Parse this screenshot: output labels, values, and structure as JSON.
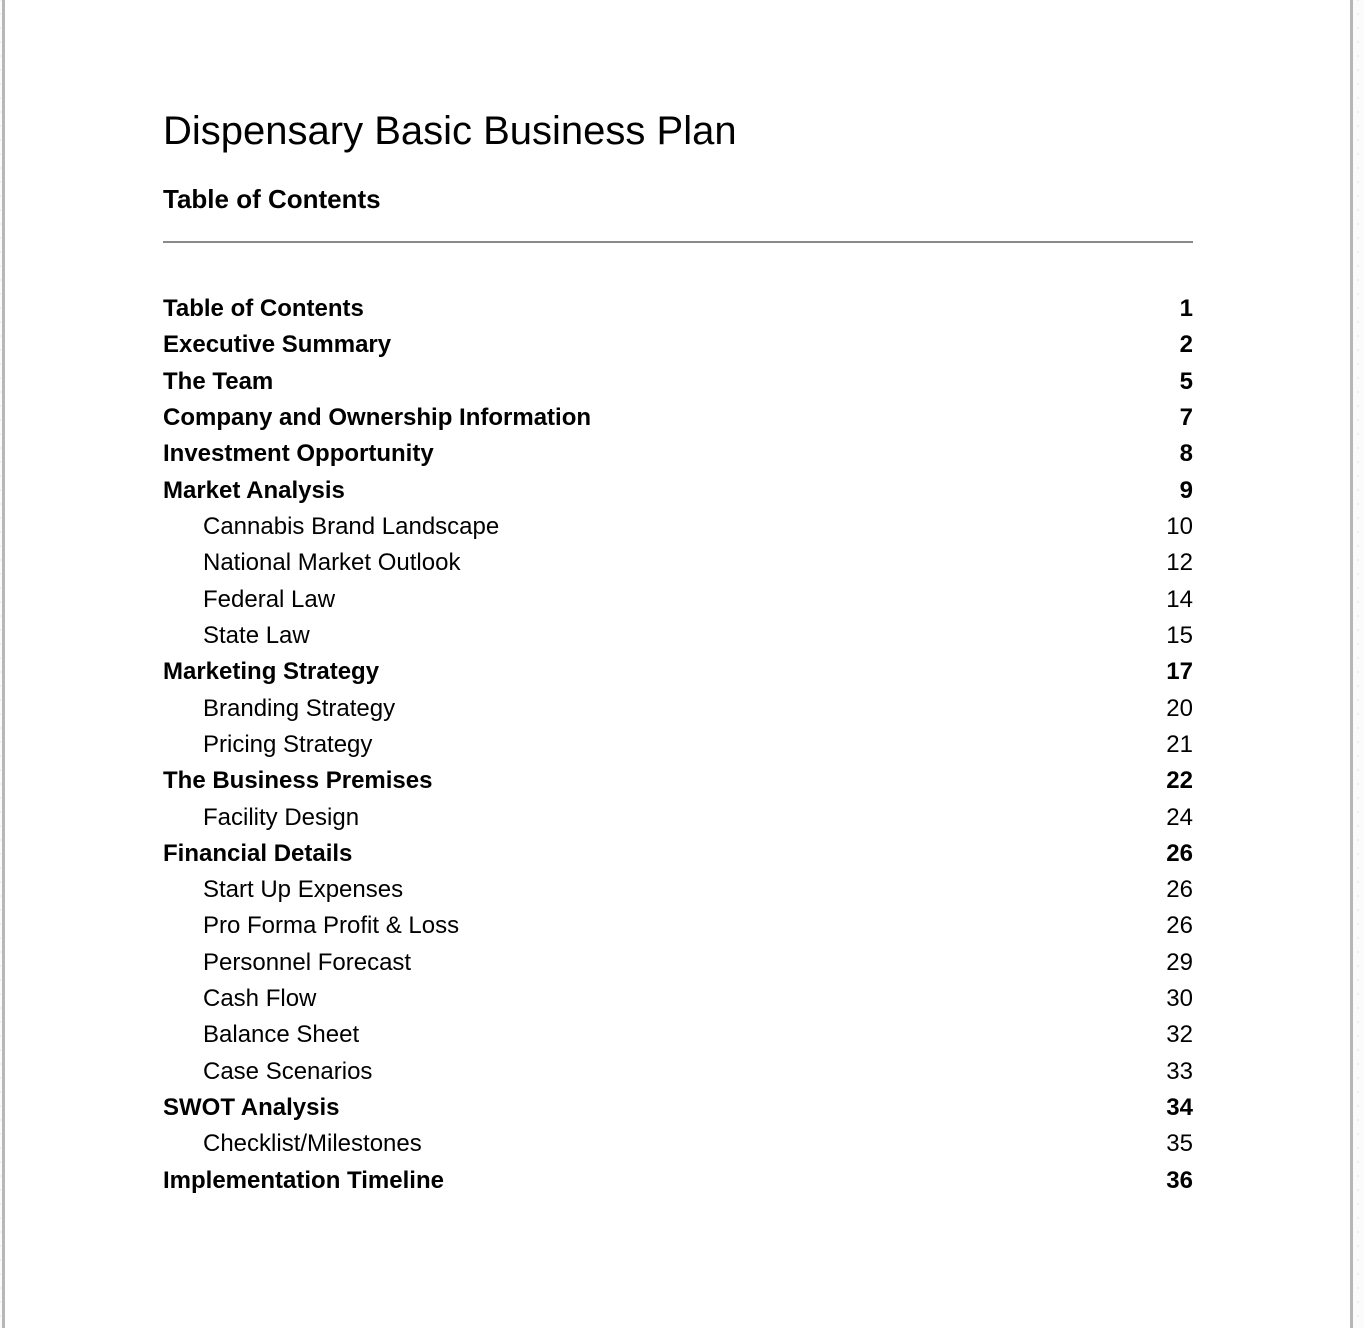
{
  "document": {
    "title": "Dispensary Basic Business Plan",
    "toc_heading": "Table of Contents"
  },
  "toc": {
    "entries": [
      {
        "label": "Table of Contents",
        "page": "1",
        "level": 1
      },
      {
        "label": "Executive Summary",
        "page": "2",
        "level": 1
      },
      {
        "label": "The Team",
        "page": "5",
        "level": 1
      },
      {
        "label": "Company and Ownership Information",
        "page": "7",
        "level": 1
      },
      {
        "label": "Investment Opportunity",
        "page": "8",
        "level": 1
      },
      {
        "label": "Market Analysis",
        "page": "9",
        "level": 1
      },
      {
        "label": "Cannabis Brand Landscape",
        "page": "10",
        "level": 2
      },
      {
        "label": "National Market Outlook",
        "page": "12",
        "level": 2
      },
      {
        "label": "Federal Law",
        "page": "14",
        "level": 2
      },
      {
        "label": "State Law",
        "page": "15",
        "level": 2
      },
      {
        "label": "Marketing Strategy",
        "page": "17",
        "level": 1
      },
      {
        "label": "Branding Strategy",
        "page": "20",
        "level": 2
      },
      {
        "label": "Pricing Strategy",
        "page": "21",
        "level": 2
      },
      {
        "label": "The Business Premises",
        "page": "22",
        "level": 1
      },
      {
        "label": "Facility Design",
        "page": "24",
        "level": 2
      },
      {
        "label": "Financial Details",
        "page": "26",
        "level": 1
      },
      {
        "label": "Start Up Expenses",
        "page": "26",
        "level": 2
      },
      {
        "label": "Pro Forma Profit & Loss",
        "page": "26",
        "level": 2
      },
      {
        "label": "Personnel Forecast",
        "page": "29",
        "level": 2
      },
      {
        "label": "Cash Flow",
        "page": "30",
        "level": 2
      },
      {
        "label": "Balance Sheet",
        "page": "32",
        "level": 2
      },
      {
        "label": "Case Scenarios",
        "page": "33",
        "level": 2
      },
      {
        "label": "SWOT Analysis",
        "page": "34",
        "level": 1
      },
      {
        "label": "Checklist/Milestones",
        "page": "35",
        "level": 2
      },
      {
        "label": "Implementation Timeline",
        "page": "36",
        "level": 1
      }
    ]
  },
  "style": {
    "page_background": "#ffffff",
    "outer_background": "#fbfbfb",
    "page_border_color": "#b7b7b7",
    "rule_color": "#8a8a8a",
    "text_color": "#000000"
  }
}
